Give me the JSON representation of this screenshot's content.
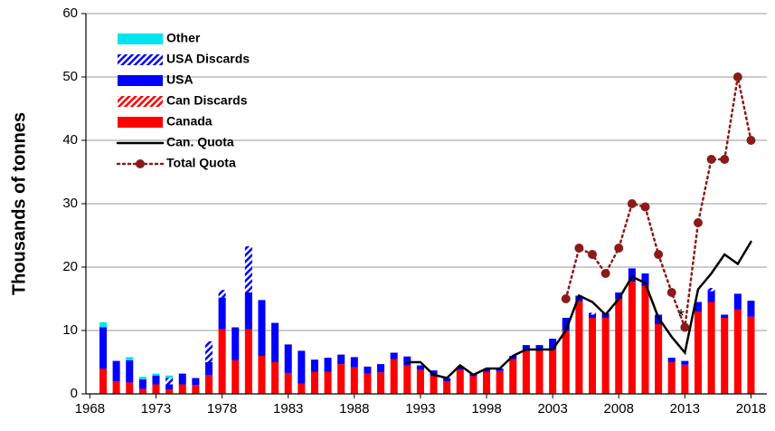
{
  "chart_data": {
    "type": "bar",
    "stacked": true,
    "y_label": "Thousands of tonnes",
    "annotation": "*",
    "x": [
      1969,
      1970,
      1971,
      1972,
      1973,
      1974,
      1975,
      1976,
      1977,
      1978,
      1979,
      1980,
      1981,
      1982,
      1983,
      1984,
      1985,
      1986,
      1987,
      1988,
      1989,
      1990,
      1991,
      1992,
      1993,
      1994,
      1995,
      1996,
      1997,
      1998,
      1999,
      2000,
      2001,
      2002,
      2003,
      2004,
      2005,
      2006,
      2007,
      2008,
      2009,
      2010,
      2011,
      2012,
      2013,
      2014,
      2015,
      2016,
      2017,
      2018
    ],
    "xlim": [
      1967.7,
      2019.2
    ],
    "xticks": [
      1968,
      1973,
      1978,
      1983,
      1988,
      1993,
      1998,
      2003,
      2008,
      2013,
      2018
    ],
    "ylim": [
      0,
      60
    ],
    "yticks": [
      0,
      10,
      20,
      30,
      40,
      50,
      60
    ],
    "grid": true,
    "legend": "upper left",
    "series": [
      {
        "name": "Other",
        "type": "bar",
        "color": "#00e5ee",
        "values": [
          0.8,
          0,
          0.5,
          0.4,
          0.3,
          0.4,
          0,
          0,
          0,
          0,
          0,
          0,
          0,
          0,
          0,
          0,
          0,
          0,
          0,
          0,
          0,
          0,
          0,
          0,
          0,
          0,
          0,
          0,
          0,
          0,
          0,
          0,
          0,
          0,
          0,
          0,
          0,
          0,
          0,
          0,
          0,
          0,
          0,
          0,
          0,
          0,
          0,
          0,
          0,
          0
        ]
      },
      {
        "name": "USA Discards",
        "type": "bar",
        "pattern": "hatch",
        "color": "#0000ff",
        "values": [
          0,
          0,
          0,
          0,
          0,
          1.0,
          0,
          0,
          3.3,
          1.2,
          0,
          7.3,
          0,
          0,
          0,
          0,
          0,
          0,
          0,
          0,
          0,
          0,
          0,
          0,
          0,
          0,
          0,
          0,
          0,
          0,
          0,
          0,
          0,
          0,
          0,
          0,
          0,
          0.3,
          0,
          0,
          0,
          0,
          0,
          0,
          0,
          0,
          0.5,
          0,
          0,
          0
        ]
      },
      {
        "name": "USA",
        "type": "bar",
        "color": "#0000ff",
        "values": [
          6.5,
          3.2,
          3.5,
          1.5,
          1.4,
          0.8,
          1.7,
          1.1,
          2.0,
          5.0,
          5.2,
          5.8,
          8.8,
          6.2,
          4.5,
          5.2,
          1.9,
          2.2,
          1.5,
          1.6,
          1.1,
          1.3,
          1.0,
          1.4,
          0.7,
          0.9,
          0.5,
          0.5,
          0.4,
          0.4,
          0.4,
          0.5,
          0.9,
          0.9,
          1.7,
          2.0,
          0.9,
          0.5,
          0.7,
          1.0,
          2.1,
          2.0,
          1.5,
          0.7,
          0.6,
          1.5,
          1.7,
          0.5,
          2.5,
          2.5
        ]
      },
      {
        "name": "Can Discards",
        "type": "bar",
        "pattern": "hatch",
        "color": "#ff0000",
        "values": [
          0,
          0,
          0,
          0,
          0,
          0,
          0,
          0,
          0,
          0,
          0,
          0,
          0,
          0,
          0,
          0,
          0,
          0,
          0,
          0,
          0,
          0,
          0,
          0,
          0,
          0,
          0,
          0,
          0,
          0,
          0,
          0,
          0,
          0,
          0,
          0,
          0,
          0,
          0,
          0,
          0,
          0,
          0,
          0,
          0,
          0,
          0,
          0,
          0,
          0
        ]
      },
      {
        "name": "Canada",
        "type": "bar",
        "color": "#ff0000",
        "values": [
          4,
          2,
          1.8,
          0.8,
          1.5,
          0.7,
          1.5,
          1.4,
          3.0,
          10.2,
          5.3,
          10.2,
          6,
          5,
          3.3,
          1.6,
          3.5,
          3.5,
          4.7,
          4.2,
          3.2,
          3.4,
          5.5,
          4.5,
          3.8,
          2.8,
          2.0,
          3.8,
          2.8,
          3.5,
          3.6,
          5.5,
          6.8,
          6.8,
          7.0,
          10,
          14.6,
          12,
          12,
          15,
          17.7,
          17,
          11,
          5,
          4.6,
          13,
          14.5,
          12,
          13.3,
          12.2
        ]
      },
      {
        "name": "Can. Quota",
        "type": "line",
        "color": "#000000",
        "values": [
          null,
          null,
          null,
          null,
          null,
          null,
          null,
          null,
          null,
          null,
          null,
          null,
          null,
          null,
          null,
          null,
          null,
          null,
          null,
          null,
          null,
          null,
          null,
          5,
          5,
          3,
          2.5,
          4.5,
          3,
          4,
          4,
          6,
          7,
          7,
          7,
          10,
          15.5,
          14.5,
          12.5,
          15,
          18.5,
          17.5,
          12,
          9,
          6.5,
          16.5,
          19,
          22,
          20.5,
          24
        ]
      },
      {
        "name": "Total Quota",
        "type": "line",
        "dash": "dot",
        "marker": "circle",
        "color": "#8b1a1a",
        "values": [
          null,
          null,
          null,
          null,
          null,
          null,
          null,
          null,
          null,
          null,
          null,
          null,
          null,
          null,
          null,
          null,
          null,
          null,
          null,
          null,
          null,
          null,
          null,
          null,
          null,
          null,
          null,
          null,
          null,
          null,
          null,
          null,
          null,
          null,
          null,
          15,
          23,
          22,
          19,
          23,
          30,
          29.5,
          22,
          16,
          10.5,
          27,
          37,
          37,
          50,
          40
        ]
      }
    ]
  }
}
